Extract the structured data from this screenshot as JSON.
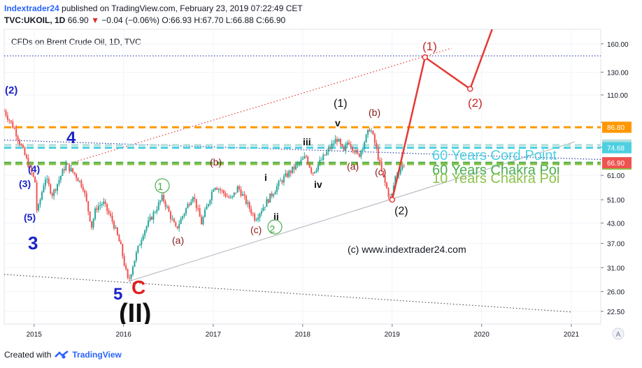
{
  "header": {
    "author": "Indextrader24",
    "published_text": "published on TradingView.com, February 23, 2019 07:22:49 CET",
    "symbol_line": "TVC:UKOIL, 1D",
    "last": "66.90",
    "change": "−0.04 (−0.06%)",
    "ohlc": "O:66.93 H:67.70 L:66.88 C:66.90"
  },
  "footer": {
    "created_with": "Created with",
    "brand": "TradingView"
  },
  "chart_data": {
    "type": "candlestick",
    "title": "CFDs on Brent Crude Oil, 1D, TVC",
    "y_scale": "log",
    "ylim": [
      20.5,
      178
    ],
    "y_ticks": [
      160,
      130,
      110,
      90,
      75,
      61,
      51,
      43,
      37,
      31,
      26,
      22.5
    ],
    "y_tick_labels": [
      "160.00",
      "130.00",
      "110.00",
      "",
      "",
      "61.00",
      "51.00",
      "43.00",
      "37.00",
      "31.00",
      "26.00",
      "22.50"
    ],
    "xlim": [
      "2014-09-01",
      "2021-05-01"
    ],
    "x_ticks": [
      "2015-01-01",
      "2016-01-01",
      "2017-01-01",
      "2018-01-01",
      "2019-01-01",
      "2020-01-01",
      "2021-01-01"
    ],
    "x_tick_labels": [
      "2015",
      "2016",
      "2017",
      "2018",
      "2019",
      "2020",
      "2021"
    ],
    "price_path": [
      [
        "2014-09-01",
        98
      ],
      [
        "2014-10-15",
        85
      ],
      [
        "2014-11-20",
        72
      ],
      [
        "2015-01-05",
        58
      ],
      [
        "2015-01-13",
        46
      ],
      [
        "2015-02-15",
        60
      ],
      [
        "2015-03-17",
        53
      ],
      [
        "2015-05-10",
        66
      ],
      [
        "2015-06-20",
        61
      ],
      [
        "2015-07-20",
        56
      ],
      [
        "2015-08-24",
        42
      ],
      [
        "2015-09-10",
        48
      ],
      [
        "2015-10-10",
        50
      ],
      [
        "2015-11-20",
        43
      ],
      [
        "2015-12-21",
        36
      ],
      [
        "2016-01-20",
        27.8
      ],
      [
        "2016-02-10",
        32
      ],
      [
        "2016-03-20",
        40
      ],
      [
        "2016-06-08",
        52
      ],
      [
        "2016-08-02",
        41
      ],
      [
        "2016-10-10",
        53
      ],
      [
        "2016-11-14",
        43
      ],
      [
        "2017-01-05",
        57
      ],
      [
        "2017-03-15",
        51
      ],
      [
        "2017-04-12",
        56
      ],
      [
        "2017-06-21",
        44.4
      ],
      [
        "2017-08-20",
        52
      ],
      [
        "2017-09-30",
        58
      ],
      [
        "2017-11-05",
        62
      ],
      [
        "2018-01-15",
        70
      ],
      [
        "2018-02-09",
        62
      ],
      [
        "2018-05-20",
        80
      ],
      [
        "2018-06-18",
        72
      ],
      [
        "2018-07-05",
        79
      ],
      [
        "2018-08-16",
        70
      ],
      [
        "2018-10-03",
        86.7
      ],
      [
        "2018-10-25",
        76
      ],
      [
        "2018-11-20",
        62
      ],
      [
        "2018-12-26",
        50.4
      ],
      [
        "2019-01-15",
        61
      ],
      [
        "2019-02-22",
        66.9
      ]
    ],
    "price_lines": [
      {
        "value": 86.8,
        "color": "#ff9800",
        "label": "86.80"
      },
      {
        "value": 76.16,
        "color": "#b2dfdb",
        "label": "76.16"
      },
      {
        "value": 74.68,
        "color": "#4dd0e1",
        "label": "74.68"
      },
      {
        "value": 66.89,
        "color": "#4caf50",
        "label": "66.89"
      },
      {
        "value": 66.25,
        "color": "#8bc34a",
        "label": "66.25"
      },
      {
        "value": 146.5,
        "color": "#3f51b5",
        "label": ""
      }
    ],
    "last_price": {
      "value": 66.9,
      "color": "#ef5350",
      "label": "66.90"
    },
    "projection": [
      [
        "2019-01-01",
        51
      ],
      [
        "2019-05-15",
        145
      ],
      [
        "2019-11-15",
        115
      ],
      [
        "2020-02-15",
        180
      ]
    ],
    "annotations": [
      {
        "text": "60 Years Cord Point",
        "color": "#4dd0e1"
      },
      {
        "text": "60 Years Chakra Poi",
        "color": "#4caf50"
      },
      {
        "text": "10 Years Chakra Poi",
        "color": "#8bc34a"
      },
      {
        "text": "(c) www.indextrader24.com",
        "color": "#131722"
      }
    ],
    "wave_labels": [
      {
        "text": "(2)",
        "color": "#1a23c7"
      },
      {
        "text": "4",
        "color": "#1a23c7"
      },
      {
        "text": "(4)",
        "color": "#1a23c7"
      },
      {
        "text": "(3)",
        "color": "#1a23c7"
      },
      {
        "text": "(5)",
        "color": "#1a23c7"
      },
      {
        "text": "3",
        "color": "#1a23c7"
      },
      {
        "text": "5",
        "color": "#1a23c7"
      },
      {
        "text": "C",
        "color": "#e02020"
      },
      {
        "text": "(II)",
        "color": "#111111"
      },
      {
        "text": "(b)",
        "color": "#8b1a1a"
      },
      {
        "text": "(a)",
        "color": "#8b1a1a"
      },
      {
        "text": "(c)",
        "color": "#8b1a1a"
      },
      {
        "text": "1",
        "color": "#4caf50"
      },
      {
        "text": "2",
        "color": "#4caf50"
      },
      {
        "text": "i",
        "color": "#111111"
      },
      {
        "text": "ii",
        "color": "#111111"
      },
      {
        "text": "iii",
        "color": "#111111"
      },
      {
        "text": "iv",
        "color": "#111111"
      },
      {
        "text": "v",
        "color": "#111111"
      },
      {
        "text": "(1)",
        "color": "#111111"
      },
      {
        "text": "(b)",
        "color": "#8b1a1a"
      },
      {
        "text": "(a)",
        "color": "#8b1a1a"
      },
      {
        "text": "(c)",
        "color": "#8b1a1a"
      },
      {
        "text": "(2)",
        "color": "#111111"
      },
      {
        "text": "(1)",
        "color": "#c62828"
      },
      {
        "text": "(2)",
        "color": "#c62828"
      }
    ],
    "scale_button": "A"
  }
}
